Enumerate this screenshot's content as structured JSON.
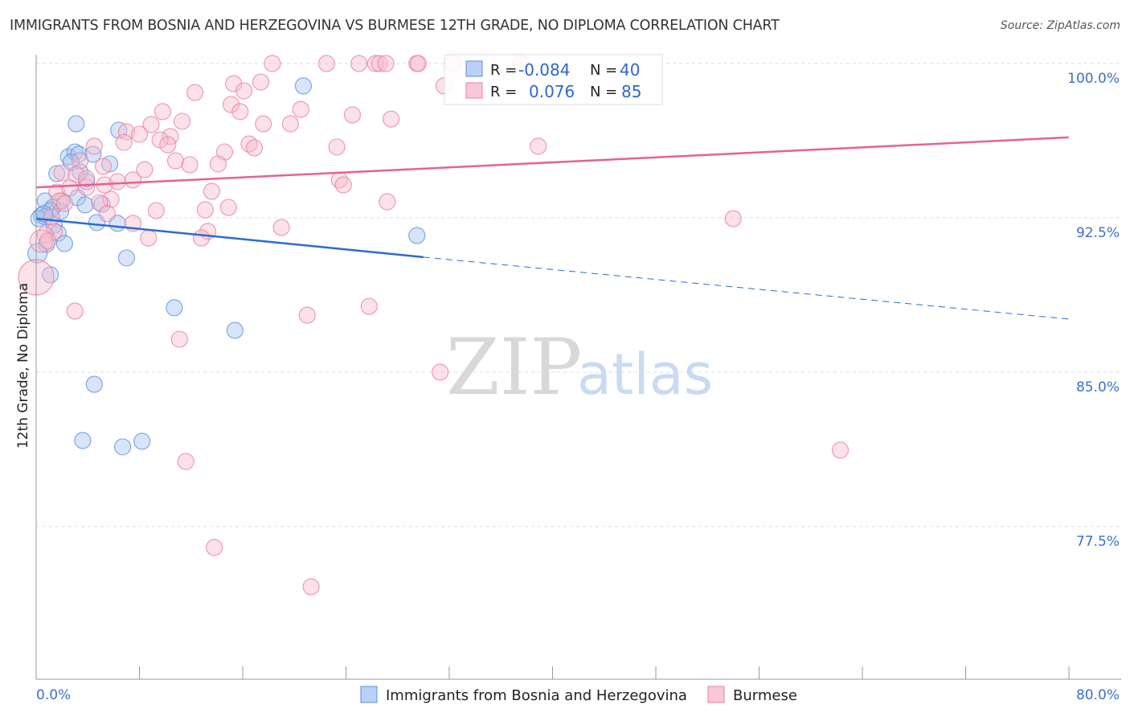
{
  "title": "IMMIGRANTS FROM BOSNIA AND HERZEGOVINA VS BURMESE 12TH GRADE, NO DIPLOMA CORRELATION CHART",
  "source": "Source: ZipAtlas.com",
  "watermark": {
    "zip": "ZIP",
    "atlas": "atlas"
  },
  "chart_data": {
    "type": "scatter",
    "title": "IMMIGRANTS FROM BOSNIA AND HERZEGOVINA VS BURMESE 12TH GRADE, NO DIPLOMA CORRELATION CHART",
    "xlabel": "",
    "ylabel": "12th Grade, No Diploma",
    "xlim": [
      0,
      80
    ],
    "ylim": [
      70,
      100.5
    ],
    "x_tick_labels": {
      "min": "0.0%",
      "max": "80.0%"
    },
    "y_ticks": [
      {
        "value": 100,
        "label": "100.0%"
      },
      {
        "value": 92.5,
        "label": "92.5%"
      },
      {
        "value": 85,
        "label": "85.0%"
      },
      {
        "value": 77.5,
        "label": "77.5%"
      }
    ],
    "grid": true,
    "legend_placement": "top-center",
    "colors": {
      "blue": "#5b8fe0",
      "blue_fill": "#a9c6f0",
      "pink": "#e87fa0",
      "pink_fill": "#f6bccd",
      "blue_line": "#2a6bd6",
      "pink_line": "#e8618f"
    },
    "series": [
      {
        "name": "Immigrants from Bosnia and Herzegovina",
        "color": "blue",
        "R": "-0.084",
        "N": "40",
        "trend": {
          "x0": 0,
          "y0": 92.46,
          "x_solid_end": 30,
          "y_solid_end": 90.59,
          "x1": 80,
          "y1": 87.58
        },
        "points": [
          [
            3.1,
            97.07
          ],
          [
            6.4,
            96.76
          ],
          [
            20.7,
            98.91
          ],
          [
            2.5,
            95.47
          ],
          [
            3.0,
            95.7
          ],
          [
            3.3,
            95.59
          ],
          [
            4.4,
            95.59
          ],
          [
            2.7,
            95.2
          ],
          [
            5.7,
            95.12
          ],
          [
            1.6,
            94.65
          ],
          [
            3.4,
            94.73
          ],
          [
            3.9,
            94.26
          ],
          [
            0.7,
            93.32
          ],
          [
            2.0,
            93.32
          ],
          [
            3.2,
            93.48
          ],
          [
            5.1,
            93.16
          ],
          [
            3.8,
            93.13
          ],
          [
            1.3,
            93.01
          ],
          [
            1.1,
            92.85
          ],
          [
            1.9,
            92.81
          ],
          [
            0.4,
            92.62
          ],
          [
            0.7,
            92.54
          ],
          [
            0.2,
            92.46
          ],
          [
            1.4,
            92.15
          ],
          [
            4.7,
            92.27
          ],
          [
            6.3,
            92.23
          ],
          [
            1.7,
            91.76
          ],
          [
            2.2,
            91.25
          ],
          [
            0.8,
            91.21
          ],
          [
            0.1,
            90.78
          ],
          [
            7.0,
            90.55
          ],
          [
            29.5,
            91.64
          ],
          [
            1.1,
            89.73
          ],
          [
            10.7,
            88.13
          ],
          [
            15.4,
            87.03
          ],
          [
            4.5,
            84.41
          ],
          [
            3.6,
            81.68
          ],
          [
            6.7,
            81.37
          ],
          [
            8.2,
            81.64
          ],
          [
            0.6,
            92.7
          ]
        ]
      },
      {
        "name": "Burmese",
        "color": "pink",
        "R": "0.076",
        "N": "85",
        "trend": {
          "x0": 0,
          "y0": 93.98,
          "x1": 80,
          "y1": 96.41
        },
        "points": [
          [
            18.3,
            100
          ],
          [
            22.5,
            100
          ],
          [
            25.0,
            100
          ],
          [
            26.3,
            100
          ],
          [
            26.6,
            100
          ],
          [
            27.1,
            100
          ],
          [
            29.5,
            100
          ],
          [
            29.6,
            100
          ],
          [
            32.3,
            100
          ],
          [
            37.5,
            100
          ],
          [
            31.6,
            98.91
          ],
          [
            15.3,
            99.02
          ],
          [
            17.4,
            99.1
          ],
          [
            12.3,
            98.59
          ],
          [
            16.1,
            98.67
          ],
          [
            15.1,
            98.01
          ],
          [
            15.8,
            97.66
          ],
          [
            20.5,
            97.77
          ],
          [
            9.8,
            97.66
          ],
          [
            11.3,
            97.19
          ],
          [
            24.5,
            97.5
          ],
          [
            27.5,
            97.3
          ],
          [
            17.6,
            97.07
          ],
          [
            19.7,
            97.07
          ],
          [
            8.9,
            97.03
          ],
          [
            7.0,
            96.68
          ],
          [
            8.0,
            96.56
          ],
          [
            10.4,
            96.45
          ],
          [
            9.6,
            96.29
          ],
          [
            6.8,
            96.17
          ],
          [
            10.2,
            96.05
          ],
          [
            4.5,
            95.98
          ],
          [
            16.5,
            96.09
          ],
          [
            16.9,
            95.9
          ],
          [
            14.6,
            95.7
          ],
          [
            23.3,
            95.94
          ],
          [
            38.9,
            95.98
          ],
          [
            10.8,
            95.27
          ],
          [
            11.9,
            95.08
          ],
          [
            14.1,
            95.12
          ],
          [
            3.4,
            95.27
          ],
          [
            5.2,
            95.0
          ],
          [
            8.4,
            94.84
          ],
          [
            7.5,
            94.34
          ],
          [
            6.3,
            94.26
          ],
          [
            23.5,
            94.34
          ],
          [
            23.8,
            94.1
          ],
          [
            3.9,
            93.98
          ],
          [
            2.0,
            94.69
          ],
          [
            3.1,
            94.61
          ],
          [
            3.9,
            94.41
          ],
          [
            13.6,
            93.79
          ],
          [
            1.6,
            93.75
          ],
          [
            5.8,
            93.4
          ],
          [
            4.9,
            93.24
          ],
          [
            27.2,
            93.28
          ],
          [
            1.8,
            93.32
          ],
          [
            9.3,
            92.85
          ],
          [
            14.9,
            93.01
          ],
          [
            13.1,
            92.89
          ],
          [
            5.5,
            92.7
          ],
          [
            7.5,
            92.23
          ],
          [
            19.0,
            92.03
          ],
          [
            54.0,
            92.46
          ],
          [
            13.3,
            91.84
          ],
          [
            8.7,
            91.52
          ],
          [
            12.8,
            91.52
          ],
          [
            1.4,
            91.84
          ],
          [
            0.7,
            91.68
          ],
          [
            3.0,
            87.97
          ],
          [
            21.0,
            87.77
          ],
          [
            25.8,
            88.2
          ],
          [
            11.1,
            86.6
          ],
          [
            31.3,
            85.0
          ],
          [
            62.3,
            81.21
          ],
          [
            11.6,
            80.66
          ],
          [
            13.8,
            76.48
          ],
          [
            21.3,
            74.57
          ],
          [
            0.0,
            89.61
          ],
          [
            0.4,
            91.37
          ],
          [
            1.2,
            92.54
          ],
          [
            2.6,
            93.95
          ],
          [
            5.3,
            94.1
          ],
          [
            0.9,
            91.37
          ],
          [
            2.2,
            93.2
          ]
        ]
      }
    ]
  },
  "legend": {
    "r_label": "R =",
    "n_label": "N ="
  }
}
